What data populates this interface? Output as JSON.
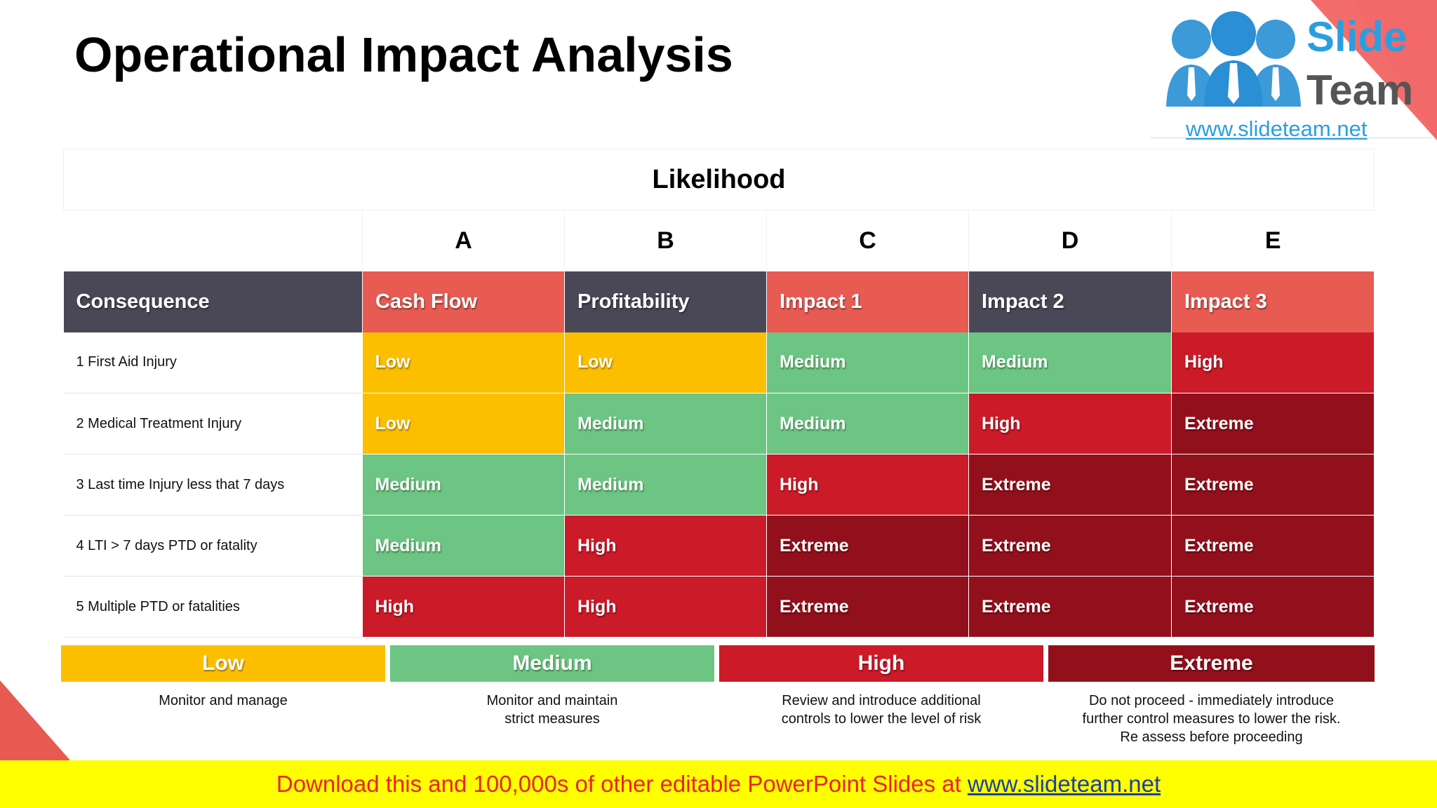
{
  "title": "Operational Impact Analysis",
  "logo": {
    "word1": "Slide",
    "word2": "Team",
    "url": "www.slideteam.net"
  },
  "matrix": {
    "likelihood_label": "Likelihood",
    "column_letters": [
      "A",
      "B",
      "C",
      "D",
      "E"
    ],
    "consequence_label": "Consequence",
    "columns": [
      "Cash Flow",
      "Profitability",
      "Impact 1",
      "Impact 2",
      "Impact 3"
    ],
    "rows": [
      {
        "label": "1 First Aid Injury",
        "cells": [
          "Low",
          "Low",
          "Medium",
          "Medium",
          "High"
        ]
      },
      {
        "label": "2 Medical Treatment Injury",
        "cells": [
          "Low",
          "Medium",
          "Medium",
          "High",
          "Extreme"
        ]
      },
      {
        "label": "3 Last time Injury less that 7 days",
        "cells": [
          "Medium",
          "Medium",
          "High",
          "Extreme",
          "Extreme"
        ]
      },
      {
        "label": "4 LTI > 7 days PTD or fatality",
        "cells": [
          "Medium",
          "High",
          "Extreme",
          "Extreme",
          "Extreme"
        ]
      },
      {
        "label": "5 Multiple PTD or fatalities",
        "cells": [
          "High",
          "High",
          "Extreme",
          "Extreme",
          "Extreme"
        ]
      }
    ]
  },
  "legend": [
    {
      "label": "Low",
      "desc": "Monitor and manage"
    },
    {
      "label": "Medium",
      "desc": "Monitor and maintain\nstrict measures"
    },
    {
      "label": "High",
      "desc": "Review and introduce additional\ncontrols to lower the level of risk"
    },
    {
      "label": "Extreme",
      "desc": "Do not proceed -  immediately introduce\nfurther control measures to lower the risk.\nRe assess before proceeding"
    }
  ],
  "colors": {
    "low": "#fbbf00",
    "medium": "#6cc582",
    "high": "#cb1a28",
    "extreme": "#92101b",
    "header_dark": "#4a4857",
    "header_red": "#e85b53"
  },
  "footer": {
    "text": "Download this and 100,000s of other editable PowerPoint Slides at ",
    "link": "www.slideteam.net"
  }
}
